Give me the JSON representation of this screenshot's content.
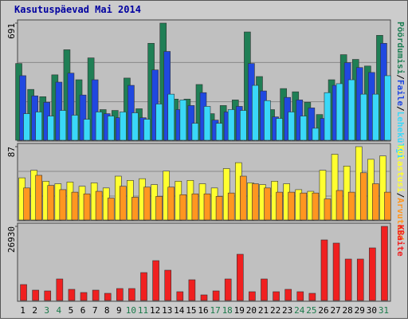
{
  "title": "Kasutuspäevad Mai 2014",
  "legend_separator": "/",
  "chart_data": [
    {
      "type": "bar",
      "ylim": [
        0,
        691
      ],
      "yticks": [
        691
      ],
      "series": [
        {
          "name": "Pöördumisi",
          "color": "#1f7f55",
          "values": [
            453,
            300,
            257,
            386,
            534,
            357,
            486,
            181,
            176,
            367,
            186,
            572,
            691,
            243,
            243,
            329,
            157,
            205,
            238,
            639,
            376,
            181,
            305,
            286,
            224,
            152,
            357,
            505,
            477,
            438,
            619
          ]
        },
        {
          "name": "Faile",
          "color": "#2048e0",
          "values": [
            381,
            262,
            224,
            343,
            396,
            267,
            357,
            157,
            133,
            324,
            133,
            415,
            524,
            181,
            205,
            281,
            119,
            167,
            200,
            453,
            291,
            138,
            253,
            238,
            191,
            129,
            324,
            458,
            429,
            400,
            572
          ]
        },
        {
          "name": "Lehekülgi",
          "color": "#3ad8f8",
          "values": [
            157,
            167,
            143,
            176,
            148,
            124,
            167,
            143,
            167,
            162,
            124,
            214,
            272,
            238,
            100,
            200,
            100,
            181,
            176,
            324,
            234,
            129,
            167,
            143,
            71,
            281,
            334,
            357,
            272,
            272,
            381
          ]
        }
      ]
    },
    {
      "type": "bar",
      "ylim": [
        0,
        87
      ],
      "yticks": [
        87
      ],
      "series": [
        {
          "name": "Külastusi",
          "color": "#ffff30",
          "values": [
            50,
            59,
            46,
            43,
            45,
            40,
            44,
            38,
            52,
            47,
            49,
            42,
            58,
            46,
            47,
            43,
            38,
            61,
            68,
            44,
            42,
            46,
            43,
            36,
            34,
            59,
            78,
            64,
            87,
            72,
            76
          ]
        },
        {
          "name": "Arvuteid",
          "color": "#ff9620",
          "values": [
            38,
            53,
            41,
            36,
            33,
            31,
            34,
            26,
            40,
            27,
            39,
            28,
            39,
            30,
            31,
            31,
            28,
            32,
            52,
            43,
            38,
            33,
            33,
            32,
            32,
            25,
            35,
            33,
            56,
            43,
            33
          ]
        }
      ]
    },
    {
      "type": "bar",
      "ylim": [
        0,
        26930
      ],
      "yticks": [
        26930
      ],
      "categories": [
        "1",
        "2",
        "3",
        "4",
        "5",
        "6",
        "7",
        "8",
        "9",
        "10",
        "11",
        "12",
        "13",
        "14",
        "15",
        "16",
        "17",
        "18",
        "19",
        "20",
        "21",
        "22",
        "23",
        "24",
        "25",
        "26",
        "27",
        "28",
        "29",
        "30",
        "31"
      ],
      "category_colors": [
        "#000",
        "#000",
        "#1a7a4a",
        "#1a7a4a",
        "#000",
        "#000",
        "#000",
        "#000",
        "#000",
        "#1a7a4a",
        "#1a7a4a",
        "#000",
        "#000",
        "#000",
        "#000",
        "#000",
        "#1a7a4a",
        "#1a7a4a",
        "#000",
        "#000",
        "#000",
        "#000",
        "#000",
        "#1a7a4a",
        "#1a7a4a",
        "#000",
        "#000",
        "#000",
        "#000",
        "#000",
        "#1a7a4a"
      ],
      "series": [
        {
          "name": "KBaite",
          "color": "#f02020",
          "values": [
            5791,
            3764,
            3475,
            7818,
            4054,
            2896,
            3764,
            2606,
            4343,
            4343,
            10135,
            14478,
            11003,
            3185,
            7529,
            2027,
            3475,
            7818,
            16794,
            3185,
            7818,
            3185,
            4054,
            3185,
            2606,
            22007,
            20849,
            15057,
            15057,
            19111,
            26930
          ]
        }
      ]
    }
  ]
}
